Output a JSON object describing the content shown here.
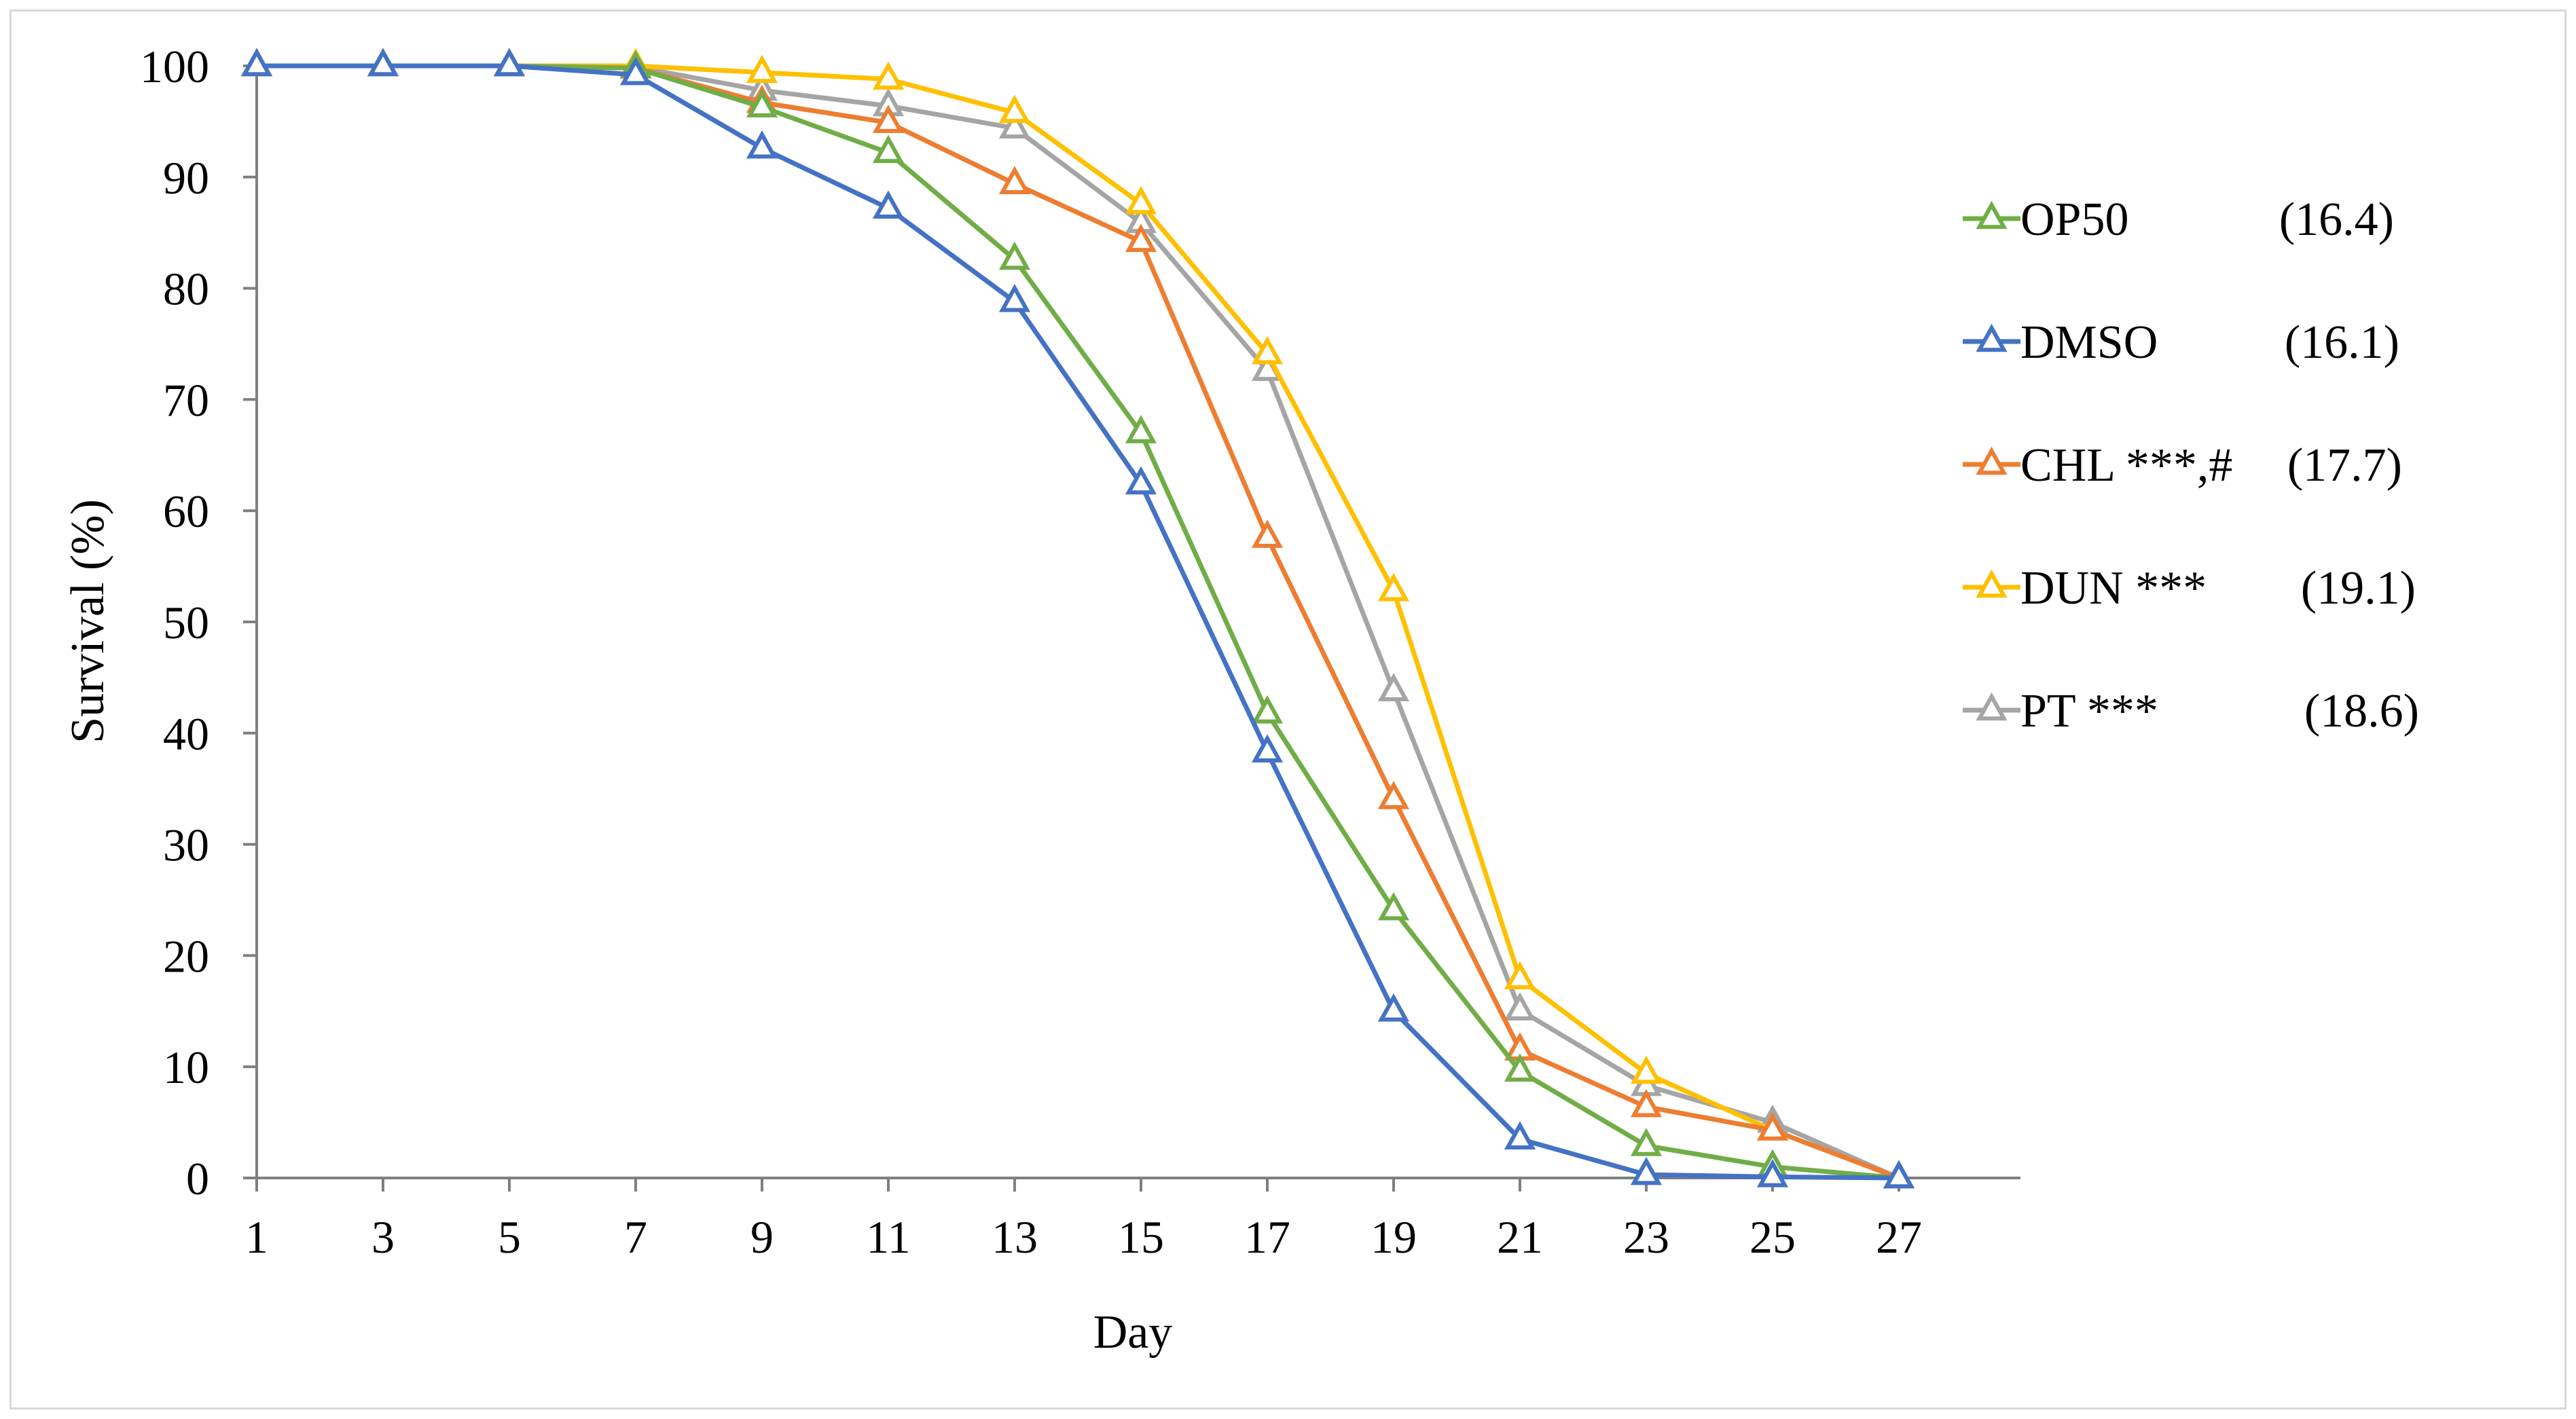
{
  "chart_data": {
    "type": "line",
    "xlabel": "Day",
    "ylabel": "Survival (%)",
    "ylim": [
      0,
      100
    ],
    "y_ticks": [
      "0",
      "10",
      "20",
      "30",
      "40",
      "50",
      "60",
      "70",
      "80",
      "90",
      "100"
    ],
    "x": [
      1,
      3,
      5,
      7,
      9,
      11,
      13,
      15,
      17,
      19,
      21,
      23,
      25,
      27
    ],
    "x_ticks": [
      "1",
      "3",
      "5",
      "7",
      "9",
      "11",
      "13",
      "15",
      "17",
      "19",
      "21",
      "23",
      "25",
      "27"
    ],
    "grid": false,
    "legend_position": "right",
    "marker": "open-triangle",
    "series": [
      {
        "name": "OP50",
        "extra": "(16.4)",
        "color": "#70ad47",
        "values": [
          100,
          100,
          100,
          99.8,
          96.3,
          92.2,
          82.6,
          67.0,
          41.8,
          24.1,
          9.6,
          2.9,
          1.0,
          0
        ]
      },
      {
        "name": "DMSO",
        "extra": "(16.1)",
        "color": "#4472c4",
        "values": [
          100,
          100,
          100,
          99.2,
          92.6,
          87.2,
          78.8,
          62.4,
          38.3,
          15.0,
          3.5,
          0.3,
          0.1,
          0
        ]
      },
      {
        "name": "CHL ***,#",
        "extra": "(17.7)",
        "color": "#ed7d31",
        "values": [
          100,
          100,
          100,
          99.8,
          96.7,
          94.9,
          89.4,
          84.2,
          57.6,
          34.1,
          11.5,
          6.4,
          4.3,
          0
        ]
      },
      {
        "name": "DUN  ***",
        "extra": "(19.1)",
        "color": "#ffc000",
        "values": [
          100,
          100,
          100,
          100,
          99.4,
          98.8,
          95.8,
          87.6,
          74.1,
          52.8,
          17.9,
          9.4,
          4.3,
          0
        ]
      },
      {
        "name": "PT ***",
        "extra": "(18.6)",
        "color": "#a5a5a5",
        "values": [
          100,
          100,
          100,
          99.9,
          97.8,
          96.4,
          94.4,
          85.9,
          72.6,
          43.8,
          15.1,
          8.3,
          5.0,
          0
        ]
      }
    ]
  }
}
